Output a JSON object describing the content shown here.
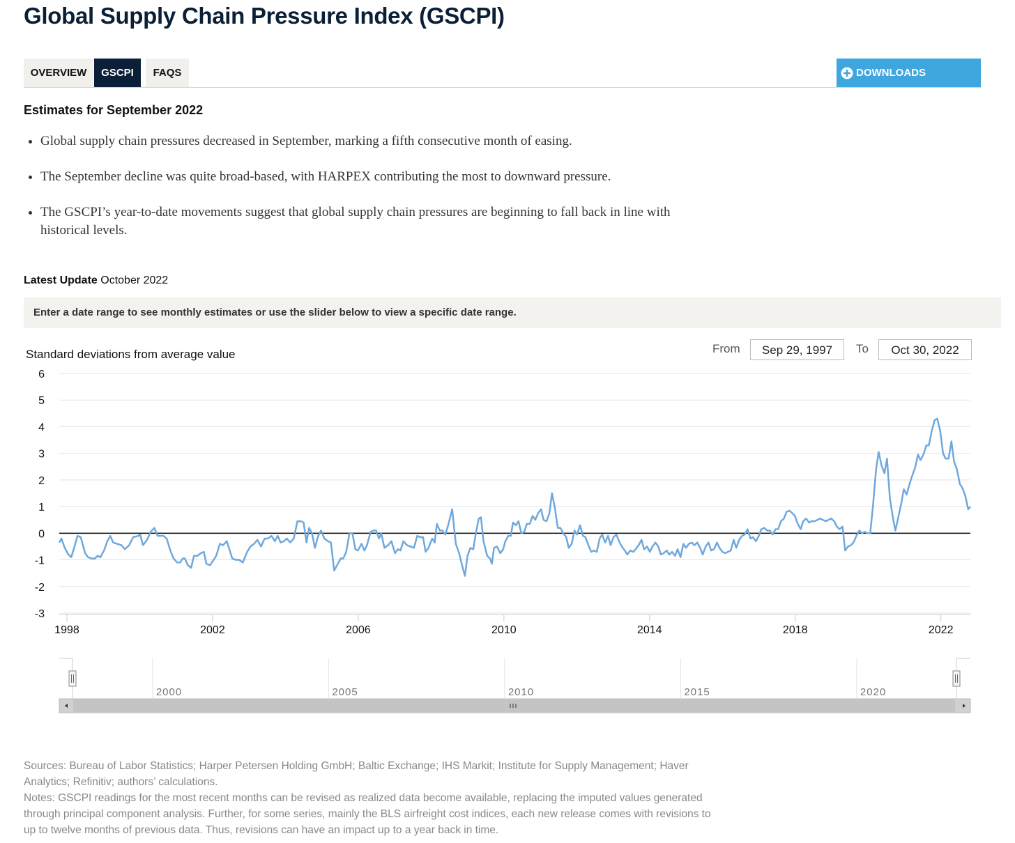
{
  "header": {
    "title": "Global Supply Chain Pressure Index (GSCPI)"
  },
  "tabs": [
    "OVERVIEW",
    "GSCPI",
    "FAQS"
  ],
  "downloads": "DOWNLOADS",
  "estimates": {
    "heading": "Estimates for September 2022",
    "bullets": [
      "Global supply chain pressures decreased in September, marking a fifth consecutive month of easing.",
      "The September decline was quite broad-based, with HARPEX contributing the most to downward pressure.",
      "The GSCPI’s year-to-date movements suggest that global supply chain pressures are beginning to fall back in line with historical levels."
    ]
  },
  "latest_update": {
    "label": "Latest Update",
    "value": "October 2022"
  },
  "instruction": "Enter a date range to see monthly estimates or use the slider below to view a specific date range.",
  "range": {
    "from_label": "From",
    "from": "Sep 29, 1997",
    "to_label": "To",
    "to": "Oct 30, 2022"
  },
  "chart_data": {
    "type": "line",
    "y_label": "Standard deviations from average value",
    "x": [
      1997.79,
      1997.85,
      1997.94,
      1998.04,
      1998.12,
      1998.23,
      1998.29,
      1998.38,
      1998.5,
      1998.58,
      1998.67,
      1998.77,
      1998.84,
      1998.92,
      1999.02,
      1999.11,
      1999.19,
      1999.27,
      1999.38,
      1999.5,
      1999.59,
      1999.71,
      1999.82,
      1999.96,
      2000.01,
      2000.09,
      2000.2,
      2000.3,
      2000.4,
      2000.49,
      2000.65,
      2000.74,
      2000.84,
      2000.93,
      2001.03,
      2001.11,
      2001.18,
      2001.24,
      2001.32,
      2001.41,
      2001.49,
      2001.58,
      2001.68,
      2001.76,
      2001.83,
      2001.93,
      2002.03,
      2002.1,
      2002.2,
      2002.29,
      2002.39,
      2002.45,
      2002.54,
      2002.64,
      2002.73,
      2002.83,
      2002.95,
      2003.04,
      2003.14,
      2003.23,
      2003.33,
      2003.43,
      2003.52,
      2003.62,
      2003.71,
      2003.79,
      2003.87,
      2003.96,
      2004.04,
      2004.13,
      2004.23,
      2004.33,
      2004.42,
      2004.5,
      2004.58,
      2004.65,
      2004.73,
      2004.81,
      2004.9,
      2004.98,
      2005.07,
      2005.17,
      2005.25,
      2005.34,
      2005.44,
      2005.52,
      2005.59,
      2005.67,
      2005.76,
      2005.84,
      2005.92,
      2005.99,
      2006.09,
      2006.17,
      2006.24,
      2006.34,
      2006.42,
      2006.49,
      2006.57,
      2006.63,
      2006.72,
      2006.82,
      2006.91,
      2007.01,
      2007.09,
      2007.16,
      2007.24,
      2007.34,
      2007.43,
      2007.53,
      2007.62,
      2007.7,
      2007.78,
      2007.85,
      2007.93,
      2008.03,
      2008.1,
      2008.16,
      2008.24,
      2008.31,
      2008.39,
      2008.47,
      2008.58,
      2008.68,
      2008.77,
      2008.85,
      2008.93,
      2009.0,
      2009.08,
      2009.16,
      2009.23,
      2009.31,
      2009.37,
      2009.44,
      2009.54,
      2009.62,
      2009.67,
      2009.73,
      2009.81,
      2009.9,
      2009.98,
      2010.04,
      2010.12,
      2010.19,
      2010.25,
      2010.33,
      2010.4,
      2010.48,
      2010.56,
      2010.63,
      2010.71,
      2010.79,
      2010.86,
      2010.94,
      2011.02,
      2011.09,
      2011.17,
      2011.25,
      2011.32,
      2011.4,
      2011.48,
      2011.55,
      2011.63,
      2011.71,
      2011.78,
      2011.86,
      2011.94,
      2012.01,
      2012.09,
      2012.17,
      2012.24,
      2012.32,
      2012.4,
      2012.47,
      2012.55,
      2012.63,
      2012.7,
      2012.78,
      2012.86,
      2012.93,
      2013.01,
      2013.09,
      2013.16,
      2013.24,
      2013.32,
      2013.39,
      2013.47,
      2013.55,
      2013.62,
      2013.7,
      2013.78,
      2013.85,
      2013.93,
      2014.01,
      2014.08,
      2014.16,
      2014.24,
      2014.31,
      2014.39,
      2014.47,
      2014.54,
      2014.62,
      2014.7,
      2014.77,
      2014.85,
      2014.93,
      2015.0,
      2015.08,
      2015.16,
      2015.23,
      2015.31,
      2015.39,
      2015.46,
      2015.54,
      2015.62,
      2015.69,
      2015.77,
      2015.85,
      2015.92,
      2016.0,
      2016.08,
      2016.15,
      2016.23,
      2016.31,
      2016.38,
      2016.46,
      2016.54,
      2016.61,
      2016.69,
      2016.77,
      2016.84,
      2016.92,
      2017.0,
      2017.07,
      2017.15,
      2017.23,
      2017.3,
      2017.38,
      2017.46,
      2017.53,
      2017.61,
      2017.69,
      2017.76,
      2017.84,
      2017.92,
      2017.99,
      2018.07,
      2018.15,
      2018.22,
      2018.3,
      2018.38,
      2018.45,
      2018.53,
      2018.61,
      2018.68,
      2018.76,
      2018.84,
      2018.91,
      2018.99,
      2019.07,
      2019.14,
      2019.22,
      2019.3,
      2019.37,
      2019.45,
      2019.53,
      2019.6,
      2019.68,
      2019.76,
      2019.83,
      2019.91,
      2019.99,
      2020.06,
      2020.14,
      2020.22,
      2020.29,
      2020.37,
      2020.45,
      2020.52,
      2020.6,
      2020.68,
      2020.75,
      2020.83,
      2020.91,
      2020.98,
      2021.06,
      2021.14,
      2021.21,
      2021.29,
      2021.37,
      2021.44,
      2021.52,
      2021.6,
      2021.67,
      2021.75,
      2021.83,
      2021.9,
      2021.98,
      2022.06,
      2022.13,
      2022.21,
      2022.29,
      2022.36,
      2022.44,
      2022.52,
      2022.59,
      2022.67,
      2022.75,
      2022.81
    ],
    "series": [
      {
        "color": "#6fa8dc",
        "values": [
          -0.35,
          -0.2,
          -0.55,
          -0.8,
          -0.9,
          -0.4,
          -0.1,
          -0.15,
          -0.75,
          -0.9,
          -0.95,
          -0.95,
          -0.85,
          -0.9,
          -0.65,
          -0.3,
          -0.1,
          -0.35,
          -0.4,
          -0.45,
          -0.6,
          -0.45,
          -0.15,
          -0.1,
          -0.05,
          -0.45,
          -0.25,
          0.05,
          0.2,
          -0.1,
          -0.1,
          -0.2,
          -0.65,
          -0.95,
          -1.1,
          -1.1,
          -0.95,
          -0.95,
          -1.2,
          -1.3,
          -0.85,
          -0.85,
          -0.75,
          -0.7,
          -1.15,
          -1.2,
          -1.0,
          -0.85,
          -0.4,
          -0.45,
          -0.3,
          -0.55,
          -0.95,
          -1.0,
          -1.0,
          -1.1,
          -0.7,
          -0.5,
          -0.4,
          -0.25,
          -0.5,
          -0.2,
          -0.2,
          -0.1,
          -0.3,
          -0.1,
          -0.35,
          -0.3,
          -0.2,
          -0.35,
          -0.2,
          0.45,
          0.45,
          0.4,
          -0.35,
          0.2,
          0.0,
          -0.55,
          -0.1,
          0.1,
          -0.2,
          -0.3,
          -0.35,
          -1.4,
          -1.15,
          -0.95,
          -0.95,
          -0.7,
          0.0,
          0.0,
          -0.6,
          -0.65,
          -0.4,
          -0.65,
          -0.45,
          0.05,
          0.1,
          0.1,
          -0.2,
          0.0,
          -0.55,
          -0.45,
          -0.3,
          -0.75,
          -0.6,
          -0.65,
          -0.3,
          -0.45,
          -0.5,
          -0.55,
          -0.1,
          -0.15,
          -0.15,
          -0.7,
          -0.55,
          -0.2,
          -0.35,
          0.35,
          0.1,
          0.1,
          -0.05,
          0.3,
          0.9,
          -0.4,
          -0.75,
          -1.2,
          -1.6,
          -0.85,
          -0.55,
          -0.6,
          0.0,
          0.55,
          0.6,
          -0.3,
          -0.85,
          -0.95,
          -1.15,
          -0.55,
          -0.5,
          -0.75,
          -0.6,
          -0.3,
          -0.1,
          -0.1,
          0.4,
          0.3,
          0.45,
          0.0,
          0.05,
          0.35,
          0.35,
          0.65,
          0.5,
          0.75,
          0.9,
          0.5,
          0.45,
          0.75,
          1.5,
          0.95,
          0.2,
          0.2,
          0.0,
          -0.15,
          -0.55,
          -0.4,
          0.1,
          -0.05,
          0.3,
          -0.1,
          -0.15,
          -0.45,
          -0.7,
          -0.65,
          -0.7,
          -0.2,
          -0.05,
          -0.35,
          -0.1,
          -0.45,
          -0.15,
          -0.05,
          -0.3,
          -0.5,
          -0.65,
          -0.8,
          -0.65,
          -0.7,
          -0.6,
          -0.45,
          -0.25,
          -0.6,
          -0.5,
          -0.7,
          -0.5,
          -0.35,
          -0.5,
          -0.8,
          -0.75,
          -0.65,
          -0.8,
          -0.7,
          -0.85,
          -0.6,
          -0.9,
          -0.4,
          -0.55,
          -0.4,
          -0.35,
          -0.45,
          -0.35,
          -0.55,
          -0.8,
          -0.5,
          -0.35,
          -0.65,
          -0.6,
          -0.35,
          -0.55,
          -0.7,
          -0.75,
          -0.7,
          -0.65,
          -0.25,
          -0.55,
          -0.25,
          -0.1,
          -0.05,
          0.15,
          -0.2,
          -0.15,
          -0.3,
          -0.1,
          0.15,
          0.2,
          0.1,
          0.1,
          -0.05,
          0.15,
          0.15,
          0.45,
          0.55,
          0.8,
          0.85,
          0.75,
          0.65,
          0.35,
          0.15,
          0.45,
          0.55,
          0.4,
          0.45,
          0.45,
          0.5,
          0.55,
          0.5,
          0.45,
          0.5,
          0.55,
          0.45,
          0.25,
          0.15,
          0.25,
          -0.65,
          -0.5,
          -0.45,
          -0.35,
          -0.1,
          0.1,
          0.0,
          0.05,
          0.0,
          0.0,
          1.1,
          2.4,
          3.05,
          2.55,
          2.25,
          2.8,
          1.3,
          0.6,
          0.1,
          0.6,
          1.1,
          1.65,
          1.45,
          1.85,
          2.15,
          2.45,
          2.95,
          2.75,
          2.95,
          3.3,
          3.3,
          3.85,
          4.25,
          4.3,
          3.85,
          3.0,
          2.8,
          2.8,
          3.45,
          2.7,
          2.4,
          1.85,
          1.7,
          1.4,
          0.9,
          1.0
        ]
      }
    ],
    "xlim": [
      1997.79,
      2022.81
    ],
    "xticks": [
      1998,
      2002,
      2006,
      2010,
      2014,
      2018,
      2022
    ],
    "ylim": [
      -3,
      6
    ],
    "yticks": [
      -3,
      -2,
      -1,
      0,
      1,
      2,
      3,
      4,
      5,
      6
    ],
    "grid": true
  },
  "navigator": {
    "xlim": [
      1997.35,
      2023.23
    ],
    "xticks": [
      2000,
      2005,
      2010,
      2015,
      2020
    ]
  },
  "footer": {
    "sources": "Sources: Bureau of Labor Statistics; Harper Petersen Holding GmbH; Baltic Exchange; IHS Markit; Institute for Supply Management; Haver Analytics; Refinitiv; authors’ calculations.",
    "notes": "Notes: GSCPI readings for the most recent months can be revised as realized data become available, replacing the imputed values generated through principal component analysis. Further, for some series, mainly the BLS airfreight cost indices, each new release comes with revisions to up to twelve months of previous data. Thus, revisions can have an impact up to a year back in time."
  }
}
